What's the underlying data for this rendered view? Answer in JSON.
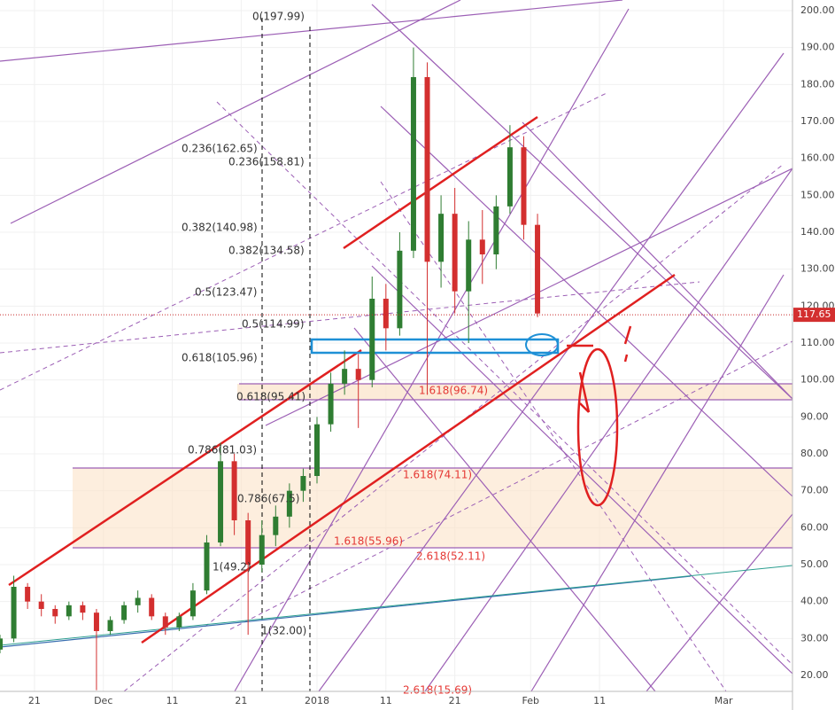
{
  "chart_data": {
    "type": "candlestick",
    "x": [
      "2017-11-16",
      "2017-11-18",
      "2017-11-20",
      "2017-11-22",
      "2017-11-24",
      "2017-11-26",
      "2017-11-28",
      "2017-11-30",
      "2017-12-02",
      "2017-12-04",
      "2017-12-06",
      "2017-12-08",
      "2017-12-10",
      "2017-12-12",
      "2017-12-14",
      "2017-12-16",
      "2017-12-18",
      "2017-12-20",
      "2017-12-22",
      "2017-12-24",
      "2017-12-26",
      "2017-12-28",
      "2017-12-30",
      "2018-01-01",
      "2018-01-03",
      "2018-01-05",
      "2018-01-07",
      "2018-01-09",
      "2018-01-11",
      "2018-01-13",
      "2018-01-15",
      "2018-01-17",
      "2018-01-19",
      "2018-01-21",
      "2018-01-23",
      "2018-01-25",
      "2018-01-27",
      "2018-01-29",
      "2018-01-31",
      "2018-02-02"
    ],
    "open": [
      27,
      30,
      44,
      40,
      38,
      36,
      39,
      37,
      32,
      35,
      39,
      41,
      36,
      33,
      36,
      43,
      56,
      78,
      62,
      50,
      58,
      63,
      70,
      74,
      88,
      99,
      103,
      100,
      122,
      114,
      135,
      182,
      132,
      145,
      124,
      138,
      134,
      147,
      163,
      142
    ],
    "high": [
      31,
      47,
      45,
      42,
      39,
      40,
      40,
      38,
      36,
      40,
      43,
      42,
      37,
      37,
      45,
      58,
      83,
      80,
      64,
      62,
      66,
      72,
      76,
      90,
      102,
      108,
      107,
      128,
      126,
      140,
      190,
      186,
      150,
      152,
      143,
      146,
      150,
      169,
      166,
      145
    ],
    "low": [
      26,
      29,
      38,
      36,
      34,
      35,
      35,
      16,
      31,
      34,
      37,
      35,
      31,
      32,
      35,
      42,
      55,
      58,
      31,
      48,
      55,
      60,
      67,
      72,
      86,
      96,
      87,
      98,
      108,
      112,
      133,
      96,
      125,
      118,
      110,
      126,
      130,
      145,
      138,
      117
    ],
    "close": [
      30,
      44,
      40,
      38,
      36,
      39,
      37,
      32,
      35,
      39,
      41,
      36,
      33,
      36,
      43,
      56,
      78,
      62,
      50,
      58,
      63,
      70,
      74,
      88,
      99,
      103,
      100,
      122,
      114,
      135,
      182,
      132,
      145,
      124,
      138,
      134,
      147,
      163,
      142,
      118
    ],
    "up_color": "#2f7d32",
    "down_color": "#d32f2f",
    "xlim": [
      "2017-11-16",
      "2018-03-11"
    ],
    "xticks": [
      {
        "value": "2017-11-21",
        "label": "21"
      },
      {
        "value": "2017-12-01",
        "label": "Dec"
      },
      {
        "value": "2017-12-11",
        "label": "11"
      },
      {
        "value": "2017-12-21",
        "label": "21"
      },
      {
        "value": "2018-01-01",
        "label": "2018"
      },
      {
        "value": "2018-01-11",
        "label": "11"
      },
      {
        "value": "2018-01-21",
        "label": "21"
      },
      {
        "value": "2018-02-01",
        "label": "Feb"
      },
      {
        "value": "2018-02-11",
        "label": "11"
      },
      {
        "value": "2018-03-01",
        "label": "Mar"
      }
    ],
    "ylim": [
      15.68,
      202.88
    ],
    "yticks": [
      {
        "value": 20,
        "label": "20.00"
      },
      {
        "value": 30,
        "label": "30.00"
      },
      {
        "value": 40,
        "label": "40.00"
      },
      {
        "value": 50,
        "label": "50.00"
      },
      {
        "value": 60,
        "label": "60.00"
      },
      {
        "value": 70,
        "label": "70.00"
      },
      {
        "value": 80,
        "label": "80.00"
      },
      {
        "value": 90,
        "label": "90.00"
      },
      {
        "value": 100,
        "label": "100.00"
      },
      {
        "value": 110,
        "label": "110.00"
      },
      {
        "value": 120,
        "label": "120.00"
      },
      {
        "value": 130,
        "label": "130.00"
      },
      {
        "value": 140,
        "label": "140.00"
      },
      {
        "value": 150,
        "label": "150.00"
      },
      {
        "value": 160,
        "label": "160.00"
      },
      {
        "value": 170,
        "label": "170.00"
      },
      {
        "value": 180,
        "label": "180.00"
      },
      {
        "value": 190,
        "label": "190.00"
      },
      {
        "value": 200,
        "label": "200.00"
      }
    ],
    "grid": true,
    "last_price": 117.65,
    "annotations": [
      "0(197.99)",
      "0.236(162.65)",
      "0.236(158.81)",
      "0.382(140.98)",
      "0.382(134.58)",
      "0.5(123.47)",
      "0.5(114.99)",
      "0.618(105.96)",
      "0.618(95.41)",
      "1.618(96.74)",
      "0.786(81.03)",
      "0.786(67.5)",
      "1(49.2)",
      "1(32.00)",
      "1.618(74.11)",
      "1.618(55.96)",
      "2.618(52.11)",
      "2.618(15.69)"
    ]
  }
}
